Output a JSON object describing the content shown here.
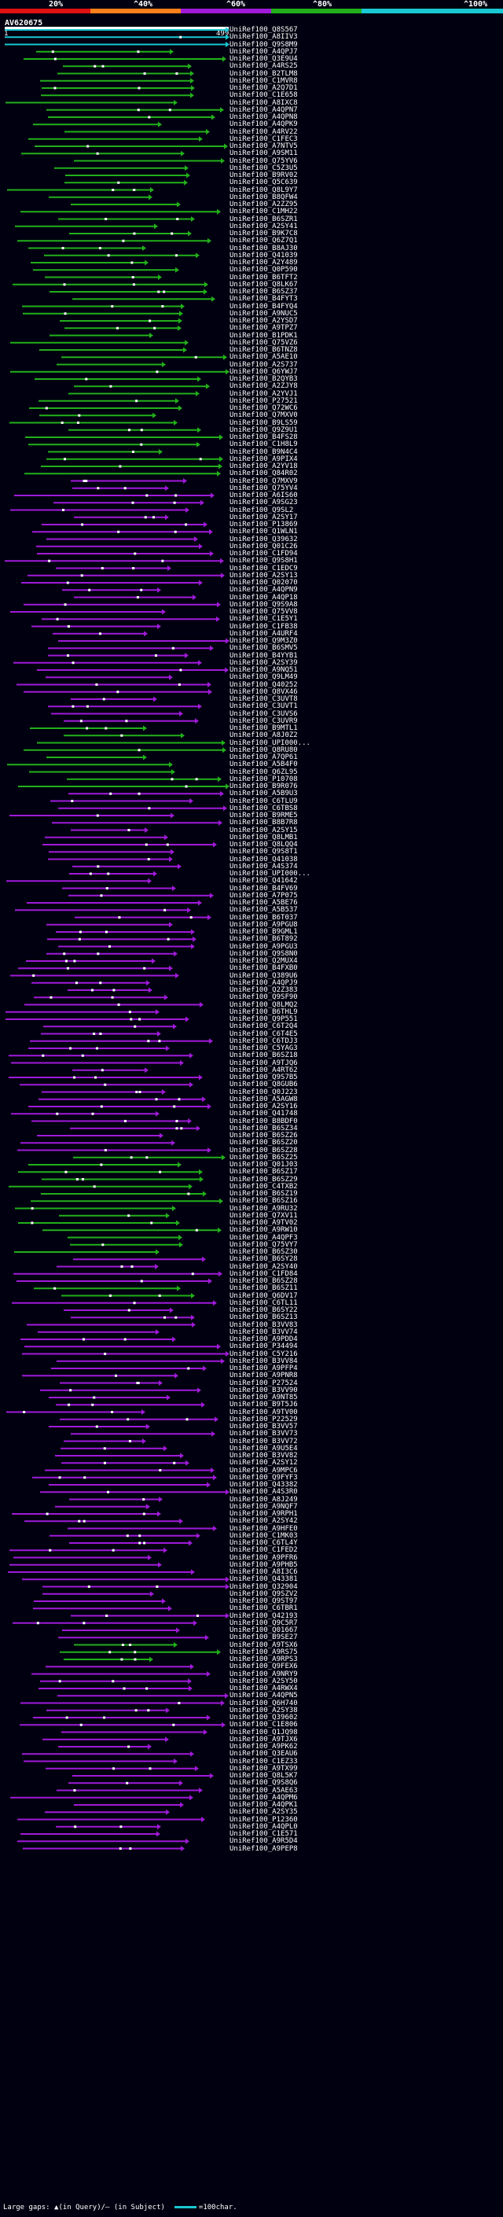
{
  "scale": {
    "labels": [
      "20%",
      "^40%",
      "^60%",
      "^80%",
      "^100%"
    ],
    "colors": [
      "#e01010",
      "#ff7f1a",
      "#a01ad8",
      "#22b01a",
      "#19c8d2"
    ]
  },
  "query": {
    "id": "AV620675",
    "start": "1",
    "end": "499"
  },
  "legend": {
    "gaps": "Large gaps: ▲(in Query)/– (in Subject)",
    "unit": "=100char."
  },
  "hits": [
    "UniRef100_Q8S567",
    "UniRef100_A8IIV3",
    "UniRef100_Q9S8M9",
    "UniRef100_A4QPJ7",
    "UniRef100_Q3E9U4",
    "UniRef100_A4RS25",
    "UniRef100_B2TLM8",
    "UniRef100_C1MVR8",
    "UniRef100_A2Q7D1",
    "UniRef100_C1E658",
    "UniRef100_A8IXC8",
    "UniRef100_A4QPN7",
    "UniRef100_A4QPN8",
    "UniRef100_A4QPK9",
    "UniRef100_A4RV22",
    "UniRef100_C1FEC3",
    "UniRef100_A7NTV5",
    "UniRef100_A9SM11",
    "UniRef100_Q75YV6",
    "UniRef100_C5Z3U5",
    "UniRef100_B9RV02",
    "UniRef100_Q5C639",
    "UniRef100_Q8L9Y7",
    "UniRef100_B8QFW4",
    "UniRef100_A2ZZ95",
    "UniRef100_C1MH22",
    "UniRef100_B6SZR1",
    "UniRef100_A2SY41",
    "UniRef100_B9K7C8",
    "UniRef100_Q6Z7Q1",
    "UniRef100_B8AJ30",
    "UniRef100_Q41039",
    "UniRef100_A2Y489",
    "UniRef100_Q0P590",
    "UniRef100_B6TFT2",
    "UniRef100_Q8LK67",
    "UniRef100_B6SZ37",
    "UniRef100_B4FYT3",
    "UniRef100_B4FYQ4",
    "UniRef100_A9NUC5",
    "UniRef100_A2YSD7",
    "UniRef100_A9TPZ7",
    "UniRef100_B1PDK1",
    "UniRef100_Q75VZ6",
    "UniRef100_B6TNZ8",
    "UniRef100_A5AE10",
    "UniRef100_A2S737",
    "UniRef100_Q6YWJ7",
    "UniRef100_B2QYB3",
    "UniRef100_A2ZJY8",
    "UniRef100_A2YVJ1",
    "UniRef100_P27521",
    "UniRef100_Q72WC6",
    "UniRef100_Q7MXV0",
    "UniRef100_B9LS59",
    "UniRef100_Q9Z9U1",
    "UniRef100_B4FS28",
    "UniRef100_C1H8L9",
    "UniRef100_B9N4C4",
    "UniRef100_A9PIX4",
    "UniRef100_A2YV18",
    "UniRef100_Q84R02",
    "UniRef100_Q7MXV9",
    "UniRef100_Q75YV4",
    "UniRef100_A6IS60",
    "UniRef100_A9SG23",
    "UniRef100_Q9SL2",
    "UniRef100_A2SY17",
    "UniRef100_P13869",
    "UniRef100_Q1WLN1",
    "UniRef100_Q39632",
    "UniRef100_Q01C26",
    "UniRef100_C1FD94",
    "UniRef100_Q9S8H1",
    "UniRef100_C1EDC9",
    "UniRef100_A2SY13",
    "UniRef100_Q02070",
    "UniRef100_A4QPN9",
    "UniRef100_A4QP18",
    "UniRef100_Q9S9A8",
    "UniRef100_Q75VV8",
    "UniRef100_C1E5Y1",
    "UniRef100_C1FB38",
    "UniRef100_A4URF4",
    "UniRef100_Q9M3Z0",
    "UniRef100_B6SMV5",
    "UniRef100_B4YYB1",
    "UniRef100_A2SY39",
    "UniRef100_A9NQ51",
    "UniRef100_Q9LM49",
    "UniRef100_Q40252",
    "UniRef100_Q8VX46",
    "UniRef100_C3UVT8",
    "UniRef100_C3UVT1",
    "UniRef100_C3UVS6",
    "UniRef100_C3UVR9",
    "UniRef100_B9MTL1",
    "UniRef100_A8J0Z2",
    "UniRef100_UPI000...",
    "UniRef100_Q8RU80",
    "UniRef100_A7QP61",
    "UniRef100_A5B4F0",
    "UniRef100_Q6ZL95",
    "UniRef100_P10708",
    "UniRef100_B9R076",
    "UniRef100_A5B9U3",
    "UniRef100_C6TLU9",
    "UniRef100_C6TBS8",
    "UniRef100_B9RME5",
    "UniRef100_B8B7R8",
    "UniRef100_A2SY15",
    "UniRef100_Q8LMB1",
    "UniRef100_Q8LQQ4",
    "UniRef100_Q9S8T1",
    "UniRef100_Q41038",
    "UniRef100_A4S374",
    "UniRef100_UPI000...",
    "UniRef100_Q41642",
    "UniRef100_B4FV69",
    "UniRef100_A7P075",
    "UniRef100_A5BE76",
    "UniRef100_A5B537",
    "UniRef100_B6T037",
    "UniRef100_A9PGU8",
    "UniRef100_B9GML1",
    "UniRef100_B6T892",
    "UniRef100_A9PGU3",
    "UniRef100_Q9S8N0",
    "UniRef100_Q2MUX4",
    "UniRef100_B4FXB0",
    "UniRef100_Q389U6",
    "UniRef100_A4QPJ9",
    "UniRef100_Q2Z383",
    "UniRef100_Q9SF90",
    "UniRef100_Q8LMQ2",
    "UniRef100_B6THL9",
    "UniRef100_Q9P551",
    "UniRef100_C6T2Q4",
    "UniRef100_C6T4E5",
    "UniRef100_C6TDJ3",
    "UniRef100_C5YAG3",
    "UniRef100_B6SZ18",
    "UniRef100_A9TJQ6",
    "UniRef100_A4RT62",
    "UniRef100_Q9S7B5",
    "UniRef100_Q8GUB6",
    "UniRef100_Q0J223",
    "UniRef100_A5AGW8",
    "UniRef100_A2SY16",
    "UniRef100_Q41748",
    "UniRef100_B8BDF0",
    "UniRef100_B6SZ34",
    "UniRef100_B6SZ26",
    "UniRef100_B6SZ20",
    "UniRef100_B6SZ28",
    "UniRef100_B6SZ25",
    "UniRef100_Q01J03",
    "UniRef100_B6SZ17",
    "UniRef100_B6SZ29",
    "UniRef100_C4TXB2",
    "UniRef100_B6SZ19",
    "UniRef100_B6SZ16",
    "UniRef100_A9RU32",
    "UniRef100_Q7XV11",
    "UniRef100_A9TV02",
    "UniRef100_A9RW10",
    "UniRef100_A4QPF3",
    "UniRef100_Q75VY7",
    "UniRef100_B6SZ30",
    "UniRef100_B6SY28",
    "UniRef100_A2SY40",
    "UniRef100_C1FD84",
    "UniRef100_B6SZ28",
    "UniRef100_B6SZ11",
    "UniRef100_Q6DV17",
    "UniRef100_C6TL11",
    "UniRef100_B6SY22",
    "UniRef100_B6SZ13",
    "UniRef100_B3VV83",
    "UniRef100_B3VV74",
    "UniRef100_A9PDD4",
    "UniRef100_P34494",
    "UniRef100_C5Y216",
    "UniRef100_B3VV84",
    "UniRef100_A9PFP4",
    "UniRef100_A9PNR8",
    "UniRef100_P27524",
    "UniRef100_B3VV90",
    "UniRef100_A9NT85",
    "UniRef100_B9T5J6",
    "UniRef100_A9TV00",
    "UniRef100_P22529",
    "UniRef100_B3VV57",
    "UniRef100_B3VV73",
    "UniRef100_B3VV72",
    "UniRef100_A9U5E4",
    "UniRef100_B3VV82",
    "UniRef100_A2SY12",
    "UniRef100_A9MPC6",
    "UniRef100_Q9FYF3",
    "UniRef100_Q43382",
    "UniRef100_A4S3R0",
    "UniRef100_A8J249",
    "UniRef100_A9NQF7",
    "UniRef100_A9RPH1",
    "UniRef100_A2SY42",
    "UniRef100_A9HFE0",
    "UniRef100_C1MK03",
    "UniRef100_C6TL4Y",
    "UniRef100_C1FED2",
    "UniRef100_A9PFR6",
    "UniRef100_A9PHB5",
    "UniRef100_A8I3C6",
    "UniRef100_Q43381",
    "UniRef100_Q32904",
    "UniRef100_Q9SZV2",
    "UniRef100_Q9ST97",
    "UniRef100_C6TBR1",
    "UniRef100_Q42193",
    "UniRef100_Q9C5R7",
    "UniRef100_Q01667",
    "UniRef100_B9SE27",
    "UniRef100_A9TSX6",
    "UniRef100_A9RS75",
    "UniRef100_A9RPS3",
    "UniRef100_Q9FEX6",
    "UniRef100_A9NRY9",
    "UniRef100_A2SY50",
    "UniRef100_A4RWX4",
    "UniRef100_A4QPN5",
    "UniRef100_Q6H740",
    "UniRef100_A2SY38",
    "UniRef100_Q39602",
    "UniRef100_C1E806",
    "UniRef100_Q1JQ98",
    "UniRef100_A9TJX6",
    "UniRef100_A9PK62",
    "UniRef100_Q3EAU6",
    "UniRef100_C1EZ33",
    "UniRef100_A9TX99",
    "UniRef100_Q8L5K7",
    "UniRef100_Q9S8Q6",
    "UniRef100_A5AE63",
    "UniRef100_A4QPM6",
    "UniRef100_A4QPK1",
    "UniRef100_A2SY35",
    "UniRef100_P12360",
    "UniRef100_A4QPL0",
    "UniRef100_C1E571",
    "UniRef100_A9R5D4",
    "UniRef100_A9PEP8"
  ]
}
